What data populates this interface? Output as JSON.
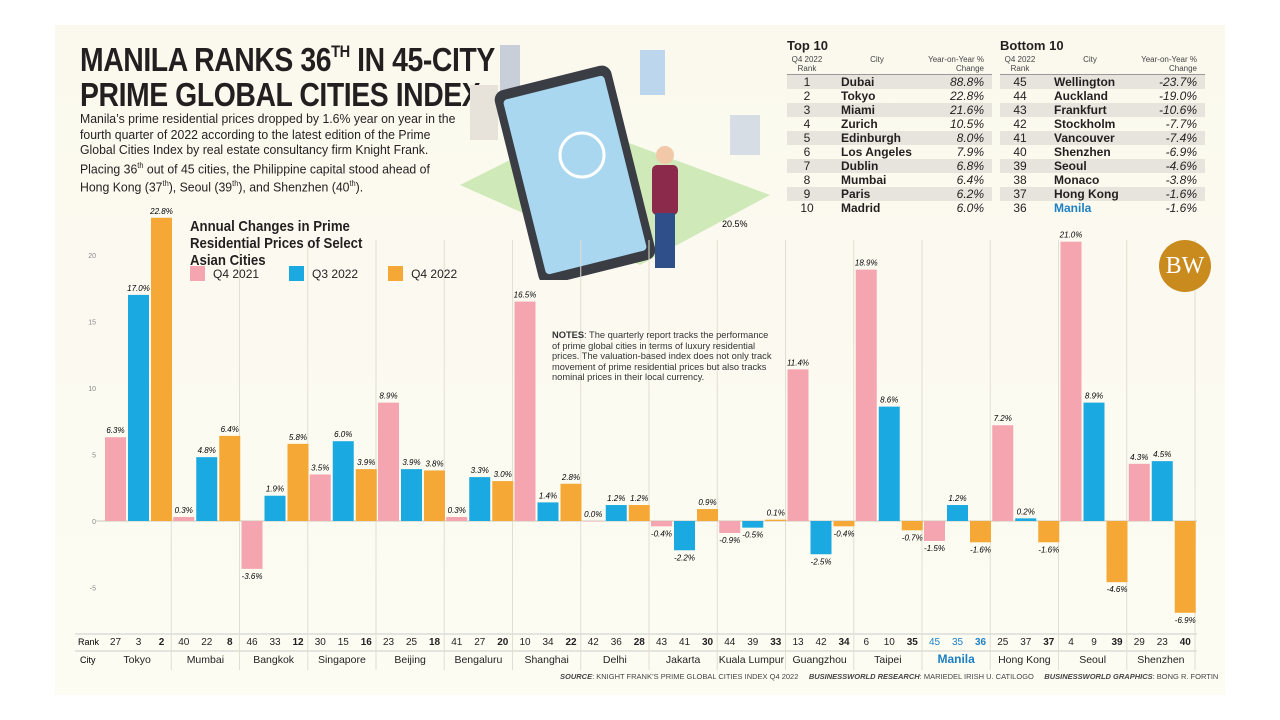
{
  "headline": {
    "line1_pre": "MANILA RANKS 36",
    "line1_sup": "TH",
    "line1_post": " IN 45-CITY",
    "line2": "PRIME GLOBAL CITIES INDEX"
  },
  "intro": {
    "p1": "Manila’s prime residential prices dropped by 1.6% year on year in the fourth quarter of 2022 according to the latest edition of the Prime Global Cities Index by real estate consultancy firm Knight Frank. Placing 36",
    "s1": "th",
    "p2": " out of 45 cities, the Philippine capital stood ahead of Hong Kong (37",
    "s2": "th",
    "p3": "), Seoul (39",
    "s3": "th",
    "p4": "), and Shenzhen (40",
    "s4": "th",
    "p5": ")."
  },
  "illustration_label": "20.5%",
  "top10": {
    "title": "Top 10",
    "headers": [
      "Q4 2022 Rank",
      "City",
      "Year-on-Year % Change"
    ],
    "rows": [
      [
        "1",
        "Dubai",
        "88.8%"
      ],
      [
        "2",
        "Tokyo",
        "22.8%"
      ],
      [
        "3",
        "Miami",
        "21.6%"
      ],
      [
        "4",
        "Zurich",
        "10.5%"
      ],
      [
        "5",
        "Edinburgh",
        "8.0%"
      ],
      [
        "6",
        "Los Angeles",
        "7.9%"
      ],
      [
        "7",
        "Dublin",
        "6.8%"
      ],
      [
        "8",
        "Mumbai",
        "6.4%"
      ],
      [
        "9",
        "Paris",
        "6.2%"
      ],
      [
        "10",
        "Madrid",
        "6.0%"
      ]
    ]
  },
  "bottom10": {
    "title": "Bottom 10",
    "headers": [
      "Q4 2022 Rank",
      "City",
      "Year-on-Year % Change"
    ],
    "rows": [
      [
        "45",
        "Wellington",
        "-23.7%"
      ],
      [
        "44",
        "Auckland",
        "-19.0%"
      ],
      [
        "43",
        "Frankfurt",
        "-10.6%"
      ],
      [
        "42",
        "Stockholm",
        "-7.7%"
      ],
      [
        "41",
        "Vancouver",
        "-7.4%"
      ],
      [
        "40",
        "Shenzhen",
        "-6.9%"
      ],
      [
        "39",
        "Seoul",
        "-4.6%"
      ],
      [
        "38",
        "Monaco",
        "-3.8%"
      ],
      [
        "37",
        "Hong Kong",
        "-1.6%"
      ],
      [
        "36",
        "Manila",
        "-1.6%"
      ]
    ]
  },
  "logo": "BW",
  "notes": {
    "label": "NOTES",
    "text": ": The quarterly report tracks the performance of prime global cities in terms of luxury residential prices. The valuation-based index does not only track movement of prime residential prices but also tracks nominal prices in their local currency."
  },
  "credits": {
    "source_label": "SOURCE",
    "source": ": KNIGHT FRANK’S PRIME GLOBAL CITIES INDEX Q4 2022",
    "research_label": "BUSINESSWORLD RESEARCH",
    "research": ": MARIEDEL IRISH U. CATILOGO",
    "graphics_label": "BUSINESSWORLD GRAPHICS",
    "graphics": ": BONG R. FORTIN"
  },
  "colors": {
    "q4_2021": "#f4a5b0",
    "q3_2022": "#1ba9e1",
    "q4_2022": "#f5a835",
    "highlight": "#1d7fc4"
  },
  "chart_data": {
    "type": "bar",
    "title": "Annual Changes in Prime Residential Prices of Select Asian Cities",
    "ylim": [
      -7,
      23
    ],
    "yticks": [
      -5,
      0,
      5,
      10,
      15,
      20
    ],
    "grid": false,
    "legend_position": "top-left",
    "row_labels": {
      "rank": "Rank",
      "city": "City"
    },
    "highlight_category": "Manila",
    "categories": [
      "Tokyo",
      "Mumbai",
      "Bangkok",
      "Singapore",
      "Beijing",
      "Bengaluru",
      "Shanghai",
      "Delhi",
      "Jakarta",
      "Kuala Lumpur",
      "Guangzhou",
      "Taipei",
      "Manila",
      "Hong Kong",
      "Seoul",
      "Shenzhen"
    ],
    "series": [
      {
        "name": "Q4 2021",
        "values": [
          6.3,
          0.3,
          -3.6,
          3.5,
          8.9,
          0.3,
          16.5,
          0.0,
          -0.4,
          -0.9,
          11.4,
          18.9,
          -1.5,
          7.2,
          21.0,
          4.3
        ],
        "ranks": [
          27,
          40,
          46,
          30,
          23,
          41,
          10,
          42,
          43,
          44,
          13,
          6,
          45,
          25,
          4,
          29
        ]
      },
      {
        "name": "Q3 2022",
        "values": [
          17.0,
          4.8,
          1.9,
          6.0,
          3.9,
          3.3,
          1.4,
          1.2,
          -2.2,
          -0.5,
          -2.5,
          8.6,
          1.2,
          0.2,
          8.9,
          4.5
        ],
        "ranks": [
          3,
          22,
          33,
          15,
          25,
          27,
          34,
          36,
          41,
          39,
          42,
          10,
          35,
          37,
          9,
          23
        ]
      },
      {
        "name": "Q4 2022",
        "values": [
          22.8,
          6.4,
          5.8,
          3.9,
          3.8,
          3.0,
          2.8,
          1.2,
          0.9,
          0.1,
          -0.4,
          -0.7,
          -1.6,
          -1.6,
          -4.6,
          -6.9
        ],
        "ranks": [
          2,
          8,
          12,
          16,
          18,
          20,
          22,
          28,
          30,
          33,
          34,
          35,
          36,
          37,
          39,
          40
        ]
      }
    ]
  }
}
